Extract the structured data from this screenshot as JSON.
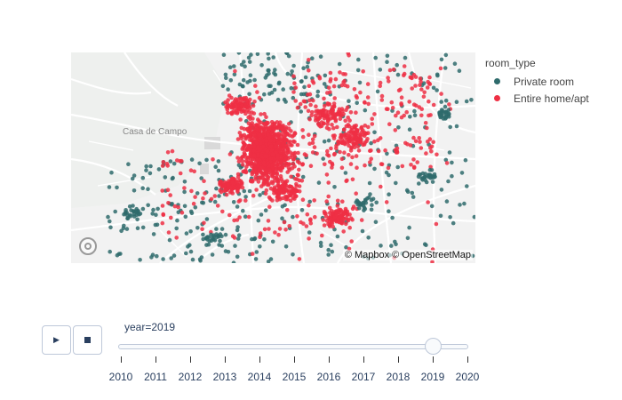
{
  "map": {
    "place_label": "Casa de Campo",
    "attribution": "© Mapbox © OpenStreetMap",
    "colors": {
      "private_room": "#2f6b6c",
      "entire_home": "#ef2f44"
    }
  },
  "legend": {
    "title": "room_type",
    "items": [
      {
        "label": "Private room",
        "color": "#2f6b6c"
      },
      {
        "label": "Entire home/apt",
        "color": "#ef2f44"
      }
    ]
  },
  "animation": {
    "play_icon": "play-icon",
    "stop_icon": "stop-icon",
    "current_label": "year=2019",
    "current_year": 2019,
    "years": [
      "2010",
      "2011",
      "2012",
      "2013",
      "2014",
      "2015",
      "2016",
      "2017",
      "2018",
      "2019",
      "2020"
    ]
  }
}
